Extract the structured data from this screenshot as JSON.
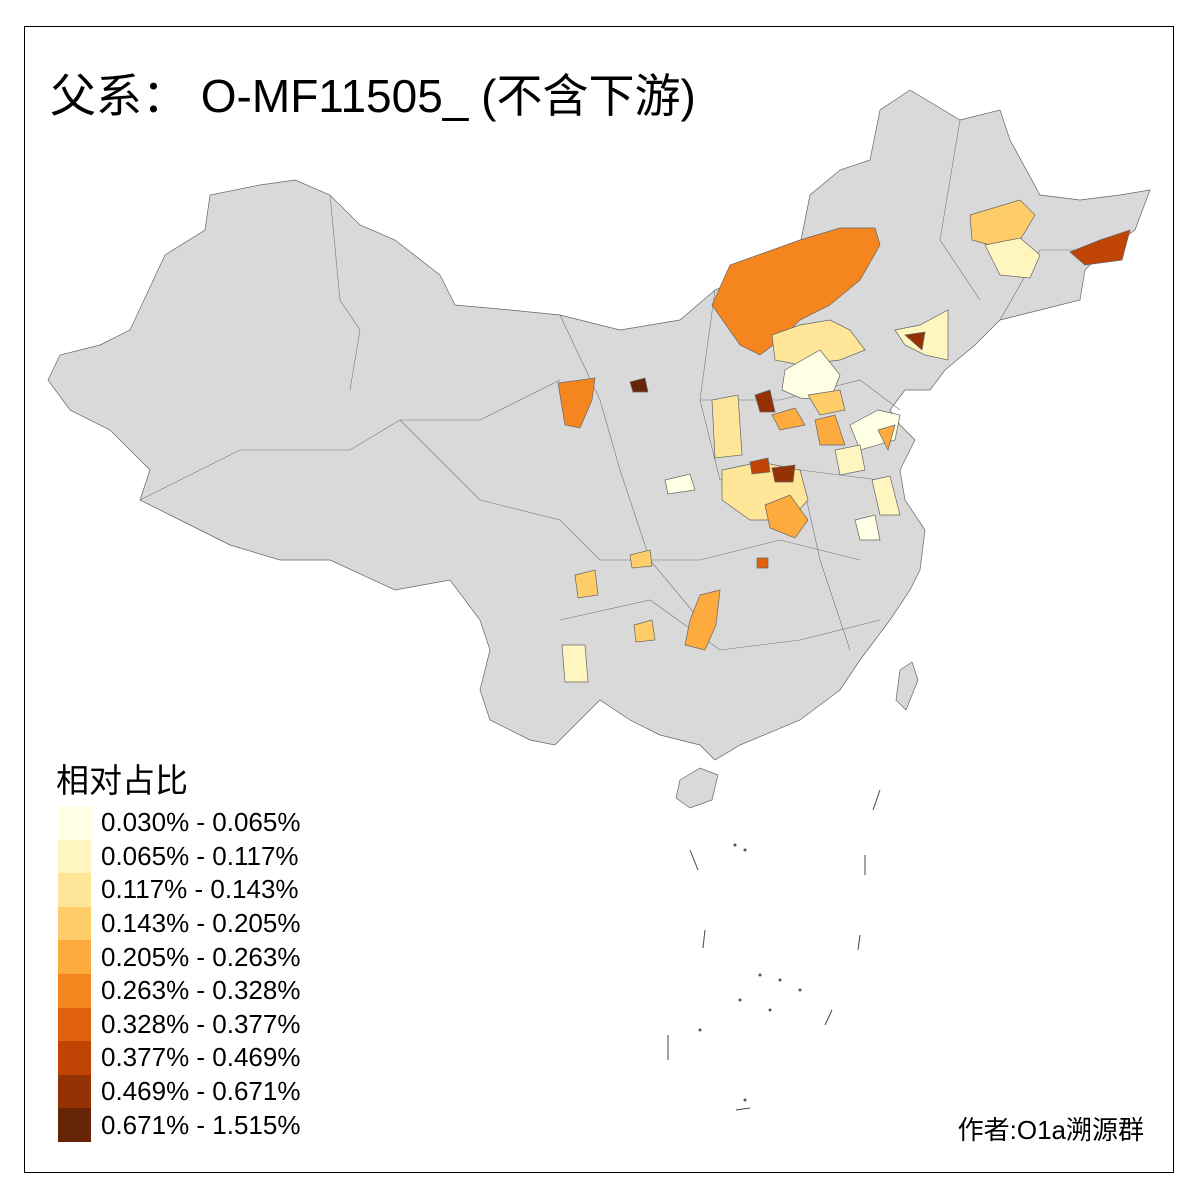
{
  "title": "父系： O-MF11505_ (不含下游)",
  "legend": {
    "title": "相对占比",
    "classes": [
      {
        "label": "0.030% - 0.065%",
        "color": "#ffffe5"
      },
      {
        "label": "0.065% - 0.117%",
        "color": "#fff6bf"
      },
      {
        "label": "0.117% - 0.143%",
        "color": "#fee598"
      },
      {
        "label": "0.143% - 0.205%",
        "color": "#fecc68"
      },
      {
        "label": "0.205% - 0.263%",
        "color": "#fdab3e"
      },
      {
        "label": "0.263% - 0.328%",
        "color": "#f5861f"
      },
      {
        "label": "0.328% - 0.377%",
        "color": "#e0620f"
      },
      {
        "label": "0.377% - 0.469%",
        "color": "#c04504"
      },
      {
        "label": "0.469% - 0.671%",
        "color": "#943204"
      },
      {
        "label": "0.671% - 1.515%",
        "color": "#662506"
      }
    ]
  },
  "base_color": "#d9d9d9",
  "credit": "作者:O1a溯源群"
}
